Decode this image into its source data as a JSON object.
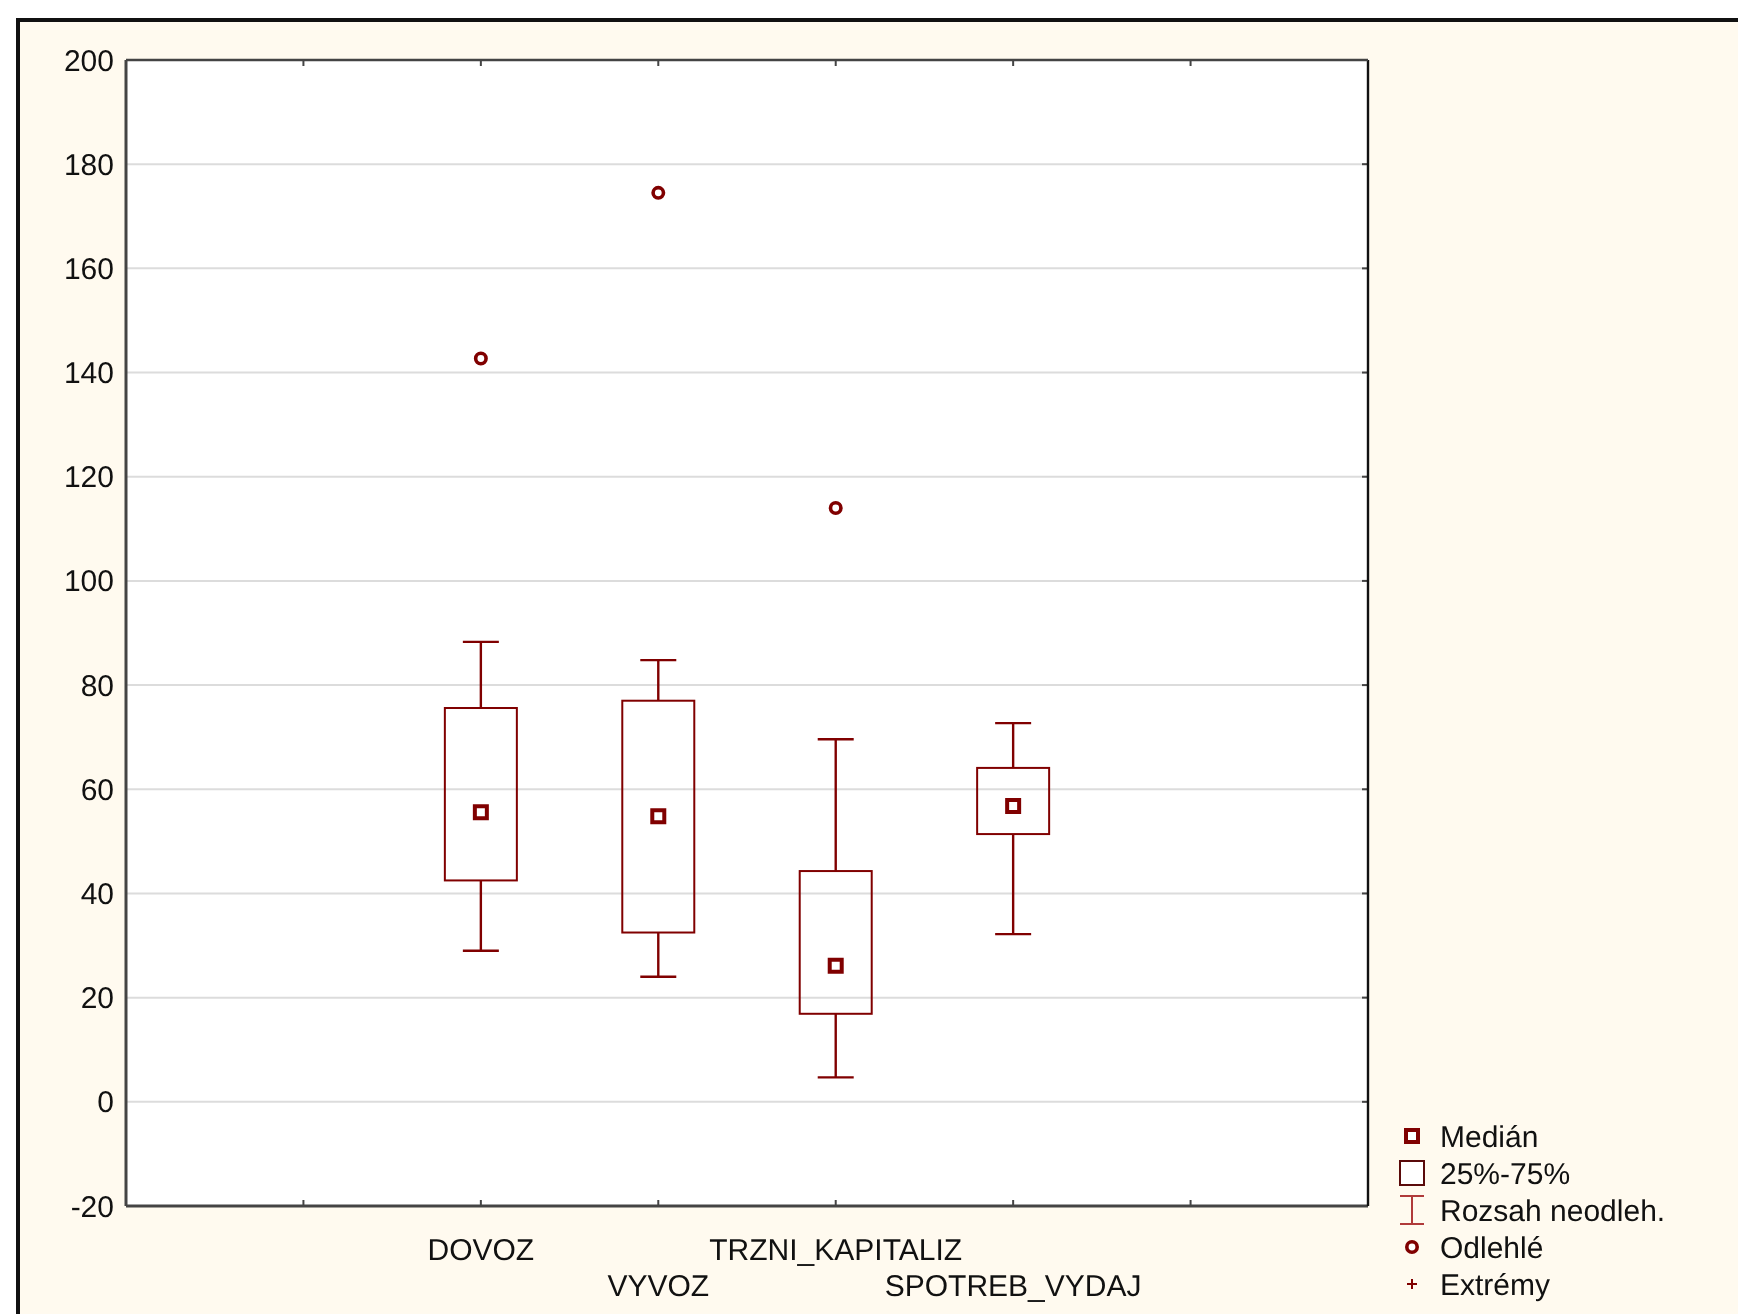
{
  "chart_data": {
    "type": "box",
    "categories": [
      null,
      null,
      "DOVOZ",
      "VYVOZ",
      "TRZNI_KAPITALIZ",
      "SPOTREB_VYDAJ",
      null,
      null
    ],
    "series": [
      {
        "color": "#800000",
        "boxes": [
          null,
          null,
          {
            "low": 29.0,
            "q1": 42.5,
            "median": 55.6,
            "q3": 75.6,
            "high": 88.3,
            "outliers": [
              142.7
            ]
          },
          {
            "low": 24.0,
            "q1": 32.5,
            "median": 54.8,
            "q3": 77.0,
            "high": 84.8,
            "outliers": [
              174.5
            ]
          },
          {
            "low": 4.7,
            "q1": 16.9,
            "median": 26.1,
            "q3": 44.3,
            "high": 69.6,
            "outliers": [
              114.0
            ]
          },
          {
            "low": 32.2,
            "q1": 51.4,
            "median": 56.8,
            "q3": 64.1,
            "high": 72.7
          },
          null,
          null
        ]
      }
    ],
    "ylim": [
      -20,
      200
    ],
    "yticks": [
      -20,
      0,
      20,
      40,
      60,
      80,
      100,
      120,
      140,
      160,
      180,
      200
    ],
    "grid": "y",
    "marker": "circle",
    "annotations": [
      "Medián",
      "25%-75%",
      "Rozsah neodleh.",
      "Odlehlé",
      "Extrémy"
    ]
  }
}
